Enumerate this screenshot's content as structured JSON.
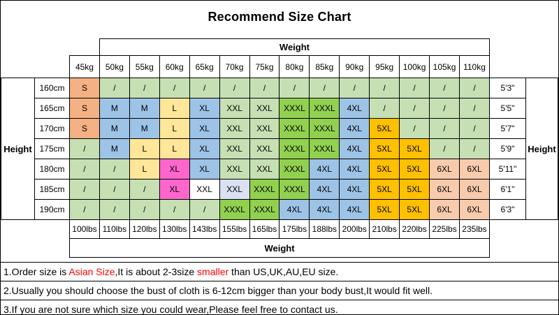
{
  "title": "Recommend Size Chart",
  "colors": {
    "green_light": "#c6e0b4",
    "orange": "#f4b183",
    "orange_light": "#f8cbad",
    "blue": "#9dc3e6",
    "yellow": "#ffe699",
    "pink": "#ff66cc",
    "green_bright": "#92d050",
    "gold": "#ffc000",
    "white": "#ffffff",
    "blue_pale": "#d9e1f2",
    "note_red": "#ff0000",
    "border": "#000000"
  },
  "chart_data": {
    "type": "table",
    "title": "Recommend Size Chart",
    "weight_header": "Weight",
    "height_header": "Height",
    "weight_kg": [
      "45kg",
      "50kg",
      "55kg",
      "60kg",
      "65kg",
      "70kg",
      "75kg",
      "80kg",
      "85kg",
      "90kg",
      "95kg",
      "100kg",
      "105kg",
      "110kg"
    ],
    "weight_lbs": [
      "100lbs",
      "110lbs",
      "120lbs",
      "130lbs",
      "143lbs",
      "155lbs",
      "165lbs",
      "175lbs",
      "188lbs",
      "200lbs",
      "210lbs",
      "220lbs",
      "225lbs",
      "235lbs"
    ],
    "height_cm": [
      "160cm",
      "165cm",
      "170cm",
      "175cm",
      "180cm",
      "185cm",
      "190cm"
    ],
    "height_ft": [
      "5'3\"",
      "5'5\"",
      "5'7\"",
      "5'9\"",
      "5'11\"",
      "6'1\"",
      "6'3\""
    ],
    "sizes": [
      [
        "S",
        "/",
        "/",
        "/",
        "/",
        "/",
        "/",
        "/",
        "/",
        "/",
        "/",
        "/",
        "/",
        "/"
      ],
      [
        "S",
        "M",
        "M",
        "L",
        "XL",
        "XXL",
        "XXL",
        "XXXL",
        "XXXL",
        "4XL",
        "/",
        "/",
        "/",
        "/"
      ],
      [
        "S",
        "M",
        "M",
        "L",
        "XL",
        "XXL",
        "XXL",
        "XXXL",
        "XXXL",
        "4XL",
        "5XL",
        "/",
        "/",
        "/"
      ],
      [
        "/",
        "M",
        "L",
        "L",
        "XL",
        "XXL",
        "XXL",
        "XXXL",
        "XXXL",
        "4XL",
        "5XL",
        "5XL",
        "/",
        "/"
      ],
      [
        "/",
        "/",
        "L",
        "XL",
        "XL",
        "XXL",
        "XXL",
        "XXXL",
        "4XL",
        "4XL",
        "5XL",
        "5XL",
        "6XL",
        "6XL"
      ],
      [
        "/",
        "/",
        "/",
        "XL",
        "XXL",
        "XXL",
        "XXXL",
        "XXXL",
        "4XL",
        "4XL",
        "5XL",
        "5XL",
        "6XL",
        "6XL"
      ],
      [
        "/",
        "/",
        "/",
        "/",
        "/",
        "XXXL",
        "XXXL",
        "4XL",
        "4XL",
        "4XL",
        "5XL",
        "5XL",
        "6XL",
        "6XL"
      ]
    ],
    "cell_colors": [
      [
        "orange",
        "green_light",
        "green_light",
        "green_light",
        "green_light",
        "green_light",
        "green_light",
        "green_light",
        "green_light",
        "green_light",
        "green_light",
        "green_light",
        "green_light",
        "green_light"
      ],
      [
        "orange",
        "blue",
        "blue",
        "yellow",
        "blue",
        "green_light",
        "green_light",
        "green_bright",
        "green_bright",
        "blue",
        "green_light",
        "green_light",
        "green_light",
        "green_light"
      ],
      [
        "orange",
        "blue",
        "blue",
        "yellow",
        "blue",
        "green_light",
        "green_light",
        "green_bright",
        "green_bright",
        "blue",
        "gold",
        "green_light",
        "green_light",
        "green_light"
      ],
      [
        "green_light",
        "blue",
        "yellow",
        "yellow",
        "blue",
        "green_light",
        "green_light",
        "green_bright",
        "green_bright",
        "blue",
        "gold",
        "gold",
        "green_light",
        "green_light"
      ],
      [
        "green_light",
        "green_light",
        "yellow",
        "pink",
        "blue",
        "green_light",
        "green_light",
        "green_bright",
        "blue",
        "blue",
        "gold",
        "gold",
        "orange_light",
        "orange_light"
      ],
      [
        "green_light",
        "green_light",
        "green_light",
        "pink",
        "white",
        "blue_pale",
        "green_bright",
        "green_bright",
        "blue",
        "blue",
        "gold",
        "gold",
        "orange_light",
        "orange_light"
      ],
      [
        "green_light",
        "green_light",
        "green_light",
        "green_light",
        "green_light",
        "green_bright",
        "green_bright",
        "blue",
        "blue",
        "blue",
        "gold",
        "gold",
        "orange_light",
        "orange_light"
      ]
    ]
  },
  "notes": [
    {
      "segments": [
        {
          "text": "1.Order size is ",
          "red": false
        },
        {
          "text": "Asian Size",
          "red": true
        },
        {
          "text": ",It is about 2-3size ",
          "red": false
        },
        {
          "text": "smaller",
          "red": true
        },
        {
          "text": " than US,UK,AU,EU size.",
          "red": false
        }
      ]
    },
    {
      "segments": [
        {
          "text": "2.Usually you should choose the bust of cloth is 6-12cm bigger than your body bust,It would fit well.",
          "red": false
        }
      ]
    },
    {
      "segments": [
        {
          "text": "3.If you are not sure which size you could wear,Please feel free to contact us.",
          "red": false
        }
      ]
    }
  ]
}
